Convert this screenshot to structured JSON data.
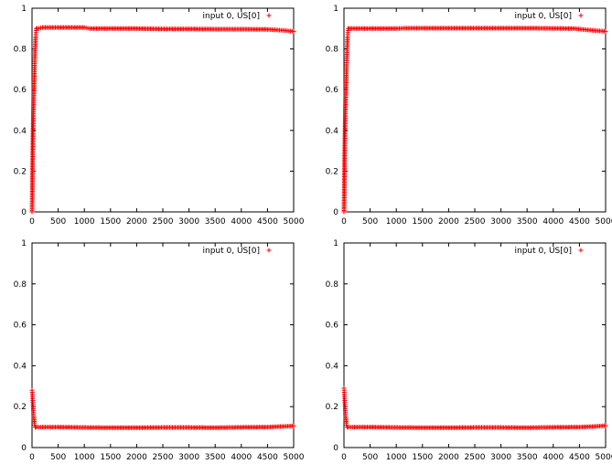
{
  "chart_data": [
    {
      "type": "scatter",
      "xlim": [
        0,
        5000
      ],
      "ylim": [
        0,
        1
      ],
      "xticks": [
        "0",
        "500",
        "1000",
        "1500",
        "2000",
        "2500",
        "3000",
        "3500",
        "4000",
        "4500",
        "5000"
      ],
      "yticks": [
        "0",
        "0.2",
        "0.4",
        "0.6",
        "0.8",
        "1"
      ],
      "legend": "top-right",
      "grid": false,
      "series": [
        {
          "name": "input 0, US[0]",
          "color": "#ff0000",
          "marker": "+",
          "points": [
            [
              0,
              0.0
            ],
            [
              5,
              0.08
            ],
            [
              10,
              0.2
            ],
            [
              15,
              0.3
            ],
            [
              20,
              0.39
            ],
            [
              25,
              0.46
            ],
            [
              30,
              0.52
            ],
            [
              35,
              0.58
            ],
            [
              40,
              0.63
            ],
            [
              45,
              0.68
            ],
            [
              50,
              0.72
            ],
            [
              55,
              0.76
            ],
            [
              60,
              0.8
            ],
            [
              65,
              0.83
            ],
            [
              70,
              0.86
            ],
            [
              75,
              0.88
            ],
            [
              80,
              0.9
            ],
            [
              100,
              0.9
            ],
            [
              200,
              0.905
            ],
            [
              500,
              0.905
            ],
            [
              1000,
              0.905
            ],
            [
              1100,
              0.9
            ],
            [
              1500,
              0.9
            ],
            [
              2000,
              0.9
            ],
            [
              2500,
              0.898
            ],
            [
              3000,
              0.898
            ],
            [
              3500,
              0.897
            ],
            [
              4000,
              0.897
            ],
            [
              4500,
              0.896
            ],
            [
              4700,
              0.893
            ],
            [
              4850,
              0.89
            ],
            [
              5000,
              0.886
            ]
          ]
        }
      ]
    },
    {
      "type": "scatter",
      "xlim": [
        0,
        5000
      ],
      "ylim": [
        0,
        1
      ],
      "xticks": [
        "0",
        "500",
        "1000",
        "1500",
        "2000",
        "2500",
        "3000",
        "3500",
        "4000",
        "4500",
        "5000"
      ],
      "yticks": [
        "0",
        "0.2",
        "0.4",
        "0.6",
        "0.8",
        "1"
      ],
      "legend": "top-right",
      "grid": false,
      "series": [
        {
          "name": "input 0, US[0]",
          "color": "#ff0000",
          "marker": "+",
          "points": [
            [
              0,
              0.0
            ],
            [
              5,
              0.09
            ],
            [
              10,
              0.2
            ],
            [
              15,
              0.31
            ],
            [
              20,
              0.39
            ],
            [
              25,
              0.46
            ],
            [
              30,
              0.52
            ],
            [
              35,
              0.57
            ],
            [
              40,
              0.62
            ],
            [
              45,
              0.67
            ],
            [
              50,
              0.71
            ],
            [
              55,
              0.75
            ],
            [
              60,
              0.79
            ],
            [
              65,
              0.83
            ],
            [
              70,
              0.86
            ],
            [
              75,
              0.88
            ],
            [
              80,
              0.9
            ],
            [
              100,
              0.9
            ],
            [
              500,
              0.9
            ],
            [
              1000,
              0.9
            ],
            [
              1200,
              0.902
            ],
            [
              1500,
              0.902
            ],
            [
              2000,
              0.902
            ],
            [
              2500,
              0.902
            ],
            [
              3000,
              0.902
            ],
            [
              3500,
              0.902
            ],
            [
              4000,
              0.901
            ],
            [
              4400,
              0.9
            ],
            [
              4600,
              0.895
            ],
            [
              4800,
              0.89
            ],
            [
              5000,
              0.886
            ]
          ]
        }
      ]
    },
    {
      "type": "scatter",
      "xlim": [
        0,
        5000
      ],
      "ylim": [
        0,
        1
      ],
      "xticks": [
        "0",
        "500",
        "1000",
        "1500",
        "2000",
        "2500",
        "3000",
        "3500",
        "4000",
        "4500",
        "5000"
      ],
      "yticks": [
        "0",
        "0.2",
        "0.4",
        "0.6",
        "0.8",
        "1"
      ],
      "legend": "top-right",
      "grid": false,
      "series": [
        {
          "name": "input 0, US[0]",
          "color": "#ff0000",
          "marker": "+",
          "points": [
            [
              0,
              0.28
            ],
            [
              5,
              0.27
            ],
            [
              10,
              0.25
            ],
            [
              15,
              0.23
            ],
            [
              20,
              0.21
            ],
            [
              25,
              0.19
            ],
            [
              30,
              0.17
            ],
            [
              35,
              0.15
            ],
            [
              40,
              0.135
            ],
            [
              45,
              0.12
            ],
            [
              50,
              0.11
            ],
            [
              60,
              0.1
            ],
            [
              80,
              0.1
            ],
            [
              200,
              0.1
            ],
            [
              500,
              0.1
            ],
            [
              1000,
              0.098
            ],
            [
              1500,
              0.097
            ],
            [
              2000,
              0.097
            ],
            [
              2500,
              0.098
            ],
            [
              3000,
              0.098
            ],
            [
              3500,
              0.097
            ],
            [
              4000,
              0.099
            ],
            [
              4500,
              0.1
            ],
            [
              4800,
              0.103
            ],
            [
              5000,
              0.106
            ]
          ]
        }
      ]
    },
    {
      "type": "scatter",
      "xlim": [
        0,
        5000
      ],
      "ylim": [
        0,
        1
      ],
      "xticks": [
        "0",
        "500",
        "1000",
        "1500",
        "2000",
        "2500",
        "3000",
        "3500",
        "4000",
        "4500",
        "5000"
      ],
      "yticks": [
        "0",
        "0.2",
        "0.4",
        "0.6",
        "0.8",
        "1"
      ],
      "legend": "top-right",
      "grid": false,
      "series": [
        {
          "name": "input 0, US[0]",
          "color": "#ff0000",
          "marker": "+",
          "points": [
            [
              0,
              0.29
            ],
            [
              5,
              0.27
            ],
            [
              10,
              0.25
            ],
            [
              15,
              0.23
            ],
            [
              20,
              0.21
            ],
            [
              25,
              0.19
            ],
            [
              30,
              0.17
            ],
            [
              35,
              0.15
            ],
            [
              40,
              0.135
            ],
            [
              45,
              0.12
            ],
            [
              50,
              0.11
            ],
            [
              60,
              0.1
            ],
            [
              80,
              0.1
            ],
            [
              200,
              0.1
            ],
            [
              500,
              0.1
            ],
            [
              1000,
              0.098
            ],
            [
              1500,
              0.097
            ],
            [
              2000,
              0.097
            ],
            [
              2500,
              0.098
            ],
            [
              3000,
              0.098
            ],
            [
              3500,
              0.097
            ],
            [
              4000,
              0.099
            ],
            [
              4500,
              0.1
            ],
            [
              4800,
              0.103
            ],
            [
              5000,
              0.107
            ]
          ]
        }
      ]
    }
  ]
}
